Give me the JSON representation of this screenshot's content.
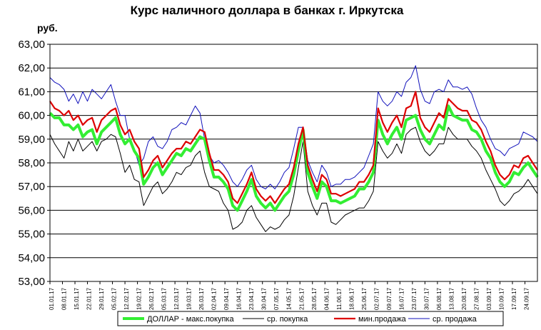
{
  "chart_data": {
    "type": "line",
    "title": "Курс наличного доллара  в банках г. Иркутска",
    "ylabel": "руб.",
    "xlabel": "",
    "ylim": [
      53,
      63
    ],
    "y_ticks": [
      "53,00",
      "54,00",
      "55,00",
      "56,00",
      "57,00",
      "58,00",
      "59,00",
      "60,00",
      "61,00",
      "62,00",
      "63,00"
    ],
    "grid": true,
    "legend_position": "bottom",
    "x_tick_labels": [
      "01.01.17",
      "08.01.17",
      "15.01.17",
      "22.01.17",
      "29.01.17",
      "05.02.17",
      "12.02.17",
      "19.02.17",
      "26.02.17",
      "05.03.17",
      "12.03.17",
      "19.03.17",
      "26.03.17",
      "02.04.17",
      "09.04.17",
      "16.04.17",
      "23.04.17",
      "30.04.17",
      "07.05.17",
      "14.05.17",
      "21.05.17",
      "28.05.17",
      "04.06.17",
      "11.06.17",
      "18.06.17",
      "25.06.17",
      "02.07.17",
      "09.07.17",
      "16.07.17",
      "23.07.17",
      "30.07.17",
      "06.08.17",
      "13.08.17",
      "20.08.17",
      "27.08.17",
      "03.09.17",
      "10.09.17",
      "17.09.17",
      "24.09.17"
    ],
    "series": [
      {
        "name": "ДОЛЛАР - макс.покупка",
        "color": "#33ee33",
        "values": [
          60.1,
          59.9,
          59.9,
          59.6,
          59.6,
          59.4,
          59.6,
          59.1,
          59.3,
          59.4,
          58.8,
          59.3,
          59.5,
          59.7,
          59.9,
          59.2,
          58.8,
          59.0,
          58.5,
          58.2,
          57.1,
          57.4,
          57.8,
          58.0,
          57.5,
          57.8,
          58.1,
          58.4,
          58.3,
          58.6,
          58.5,
          58.8,
          59.1,
          59.0,
          58.1,
          57.4,
          57.4,
          57.2,
          56.9,
          56.2,
          56.0,
          56.4,
          56.8,
          57.3,
          56.6,
          56.3,
          56.1,
          56.3,
          56.0,
          56.3,
          56.6,
          56.8,
          57.5,
          58.5,
          59.4,
          57.6,
          57.0,
          56.5,
          57.2,
          57.0,
          56.4,
          56.4,
          56.3,
          56.4,
          56.5,
          56.6,
          56.9,
          56.9,
          57.2,
          57.6,
          59.8,
          59.2,
          58.8,
          59.2,
          59.5,
          59.0,
          59.8,
          59.9,
          60.0,
          59.4,
          59.0,
          58.8,
          59.2,
          59.6,
          59.4,
          60.4,
          60.0,
          59.9,
          59.8,
          59.8,
          59.4,
          59.3,
          59.0,
          58.5,
          58.2,
          57.6,
          57.2,
          57.0,
          57.2,
          57.6,
          57.5,
          57.8,
          58.0,
          57.7,
          57.4
        ]
      },
      {
        "name": "ср. покупка",
        "color": "#000000",
        "values": [
          59.2,
          58.8,
          58.5,
          58.2,
          58.9,
          58.5,
          59.0,
          58.5,
          58.7,
          58.9,
          58.5,
          58.9,
          59.0,
          59.2,
          59.1,
          58.4,
          57.6,
          57.9,
          57.3,
          57.2,
          56.2,
          56.6,
          57.0,
          57.2,
          56.7,
          56.9,
          57.2,
          57.6,
          57.5,
          57.8,
          57.9,
          58.3,
          58.5,
          57.6,
          57.0,
          56.9,
          56.8,
          56.3,
          56.0,
          55.2,
          55.3,
          55.5,
          56.0,
          56.2,
          55.7,
          55.4,
          55.1,
          55.3,
          55.2,
          55.3,
          55.6,
          55.8,
          56.6,
          57.8,
          58.9,
          56.8,
          56.2,
          55.8,
          56.3,
          56.3,
          55.5,
          55.4,
          55.6,
          55.8,
          55.9,
          56.0,
          56.1,
          56.1,
          56.4,
          56.8,
          58.9,
          58.5,
          58.2,
          58.4,
          58.8,
          58.4,
          59.2,
          59.4,
          59.5,
          58.9,
          58.5,
          58.3,
          58.5,
          58.8,
          58.8,
          59.5,
          59.2,
          59.0,
          59.0,
          59.0,
          58.7,
          58.5,
          58.2,
          57.7,
          57.3,
          56.9,
          56.4,
          56.2,
          56.4,
          56.7,
          56.8,
          57.0,
          57.3,
          57.0,
          56.7
        ]
      },
      {
        "name": "мин.продажа",
        "color": "#dd0000",
        "values": [
          60.6,
          60.3,
          60.2,
          60.0,
          60.2,
          59.8,
          60.0,
          59.6,
          59.8,
          59.9,
          59.3,
          59.8,
          60.0,
          60.2,
          60.3,
          59.6,
          59.2,
          59.4,
          58.9,
          58.6,
          57.4,
          57.7,
          58.1,
          58.3,
          57.8,
          58.1,
          58.4,
          58.6,
          58.6,
          58.9,
          58.8,
          59.1,
          59.4,
          59.3,
          58.4,
          57.7,
          57.7,
          57.5,
          57.2,
          56.5,
          56.3,
          56.7,
          57.1,
          57.6,
          56.9,
          56.6,
          56.4,
          56.6,
          56.3,
          56.6,
          56.9,
          57.1,
          57.8,
          58.8,
          59.5,
          57.9,
          57.3,
          56.8,
          57.5,
          57.3,
          56.7,
          56.7,
          56.6,
          56.7,
          56.8,
          56.9,
          57.2,
          57.2,
          57.5,
          57.9,
          60.3,
          59.7,
          59.3,
          59.7,
          60.0,
          59.5,
          60.3,
          60.4,
          61.0,
          59.9,
          59.5,
          59.3,
          59.7,
          60.1,
          59.9,
          60.7,
          60.5,
          60.3,
          60.2,
          60.2,
          59.8,
          59.7,
          59.4,
          58.9,
          58.5,
          57.9,
          57.5,
          57.3,
          57.5,
          57.9,
          57.8,
          58.2,
          58.3,
          58.0,
          57.7
        ]
      },
      {
        "name": "ср. продажа",
        "color": "#1111bb",
        "values": [
          61.6,
          61.4,
          61.3,
          61.1,
          60.6,
          60.9,
          60.5,
          61.0,
          60.6,
          61.1,
          60.9,
          60.7,
          61.0,
          61.3,
          60.6,
          60.0,
          60.0,
          59.0,
          58.6,
          57.9,
          58.2,
          58.9,
          59.1,
          58.7,
          58.6,
          58.9,
          59.4,
          59.5,
          59.7,
          59.6,
          60.0,
          60.4,
          60.1,
          59.0,
          58.3,
          58.0,
          58.1,
          57.9,
          57.6,
          57.2,
          57.0,
          57.3,
          57.7,
          57.9,
          57.3,
          57.0,
          56.9,
          57.1,
          56.9,
          57.2,
          57.6,
          57.8,
          58.6,
          59.5,
          59.5,
          58.1,
          57.6,
          57.2,
          57.9,
          57.6,
          57.0,
          57.1,
          57.1,
          57.3,
          57.3,
          57.4,
          57.6,
          57.8,
          58.3,
          58.8,
          61.0,
          60.6,
          60.4,
          60.6,
          61.0,
          60.8,
          61.4,
          61.6,
          62.1,
          61.1,
          60.6,
          60.5,
          61.0,
          61.1,
          61.0,
          61.5,
          61.2,
          61.2,
          61.1,
          61.2,
          60.9,
          60.3,
          59.8,
          59.5,
          59.0,
          58.6,
          58.5,
          58.3,
          58.6,
          58.7,
          58.8,
          59.3,
          59.2,
          59.1,
          58.9
        ]
      }
    ]
  }
}
